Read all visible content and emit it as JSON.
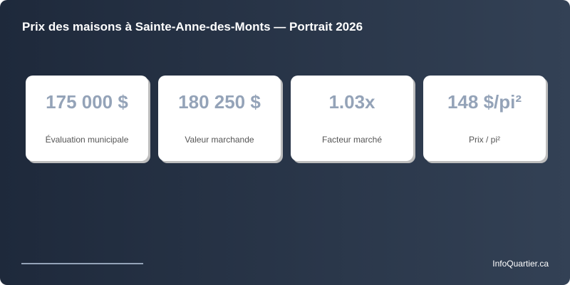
{
  "title": "Prix des maisons à Sainte-Anne-des-Monts — Portrait 2026",
  "cards": [
    {
      "value": "175 000 $",
      "label": "Évaluation municipale"
    },
    {
      "value": "180 250 $",
      "label": "Valeur marchande"
    },
    {
      "value": "1.03x",
      "label": "Facteur marché"
    },
    {
      "value": "148 $/pi²",
      "label": "Prix / pi²"
    }
  ],
  "footer": {
    "brand": "InfoQuartier.ca"
  },
  "colors": {
    "background_start": "#1e293b",
    "background_end": "#334155",
    "value": "#94a3b8",
    "accent_line": "#94a3b8"
  }
}
